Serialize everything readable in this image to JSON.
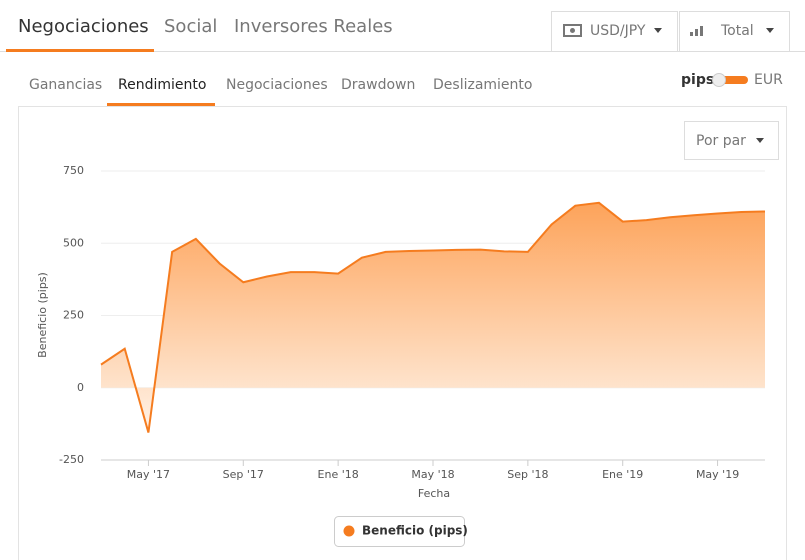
{
  "header": {
    "tabs": [
      "Negociaciones",
      "Social",
      "Inversores Reales"
    ],
    "selectors": [
      "USD/JPY",
      "Total"
    ]
  },
  "subtabs": [
    "Ganancias",
    "Rendimiento",
    "Negociaciones",
    "Drawdown",
    "Deslizamiento"
  ],
  "toggle": {
    "left": "pips",
    "right": "EUR"
  },
  "dropdown": "Por par",
  "chart_data": {
    "type": "area",
    "xlabel": "Fecha",
    "ylabel": "Beneficio (pips)",
    "x": [
      "2017-03",
      "2017-04",
      "2017-05",
      "2017-06",
      "2017-07",
      "2017-08",
      "2017-09",
      "2017-10",
      "2017-11",
      "2017-12",
      "2018-01",
      "2018-02",
      "2018-03",
      "2018-04",
      "2018-05",
      "2018-06",
      "2018-07",
      "2018-08",
      "2018-09",
      "2018-10",
      "2018-11",
      "2018-12",
      "2019-01",
      "2019-02",
      "2019-03",
      "2019-04",
      "2019-05",
      "2019-06",
      "2019-07"
    ],
    "series": [
      {
        "name": "Beneficio (pips)",
        "color": "#f57c1f",
        "values": [
          80,
          135,
          -155,
          470,
          515,
          430,
          365,
          385,
          400,
          400,
          395,
          450,
          470,
          473,
          475,
          477,
          478,
          472,
          470,
          565,
          630,
          640,
          575,
          580,
          590,
          597,
          603,
          608,
          610
        ]
      }
    ],
    "xlim": [
      "2017-03",
      "2019-07"
    ],
    "xticks": [
      {
        "value": "2017-05",
        "label": "May '17"
      },
      {
        "value": "2017-09",
        "label": "Sep '17"
      },
      {
        "value": "2018-01",
        "label": "Ene '18"
      },
      {
        "value": "2018-05",
        "label": "May '18"
      },
      {
        "value": "2018-09",
        "label": "Sep '18"
      },
      {
        "value": "2019-01",
        "label": "Ene '19"
      },
      {
        "value": "2019-05",
        "label": "May '19"
      }
    ],
    "ylim": [
      -250,
      750
    ],
    "yticks": [
      -250,
      0,
      250,
      500,
      750
    ],
    "grid": true,
    "legend": "bottom"
  }
}
